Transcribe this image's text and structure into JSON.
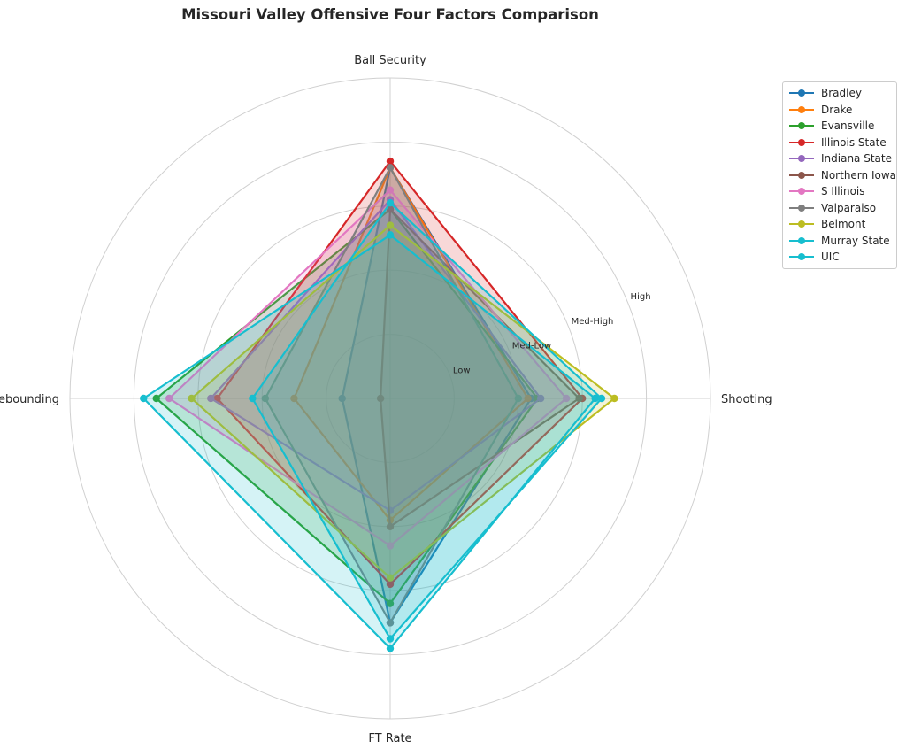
{
  "chart_data": {
    "type": "radar",
    "title": "Missouri Valley Offensive Four Factors Comparison",
    "axes": [
      "Ball Security",
      "Shooting",
      "FT Rate",
      "Off Rebounding"
    ],
    "ring_labels": [
      "Low",
      "Med-Low",
      "Med-High",
      "High"
    ],
    "r_max": 5,
    "grid": true,
    "legend_position": "upper-right-outside",
    "series": [
      {
        "name": "Bradley",
        "color": "#1f77b4",
        "values": [
          3.6,
          2.2,
          3.5,
          0.75
        ]
      },
      {
        "name": "Drake",
        "color": "#ff7f0e",
        "values": [
          3.6,
          2.15,
          1.9,
          1.5
        ]
      },
      {
        "name": "Evansville",
        "color": "#2ca02c",
        "values": [
          2.95,
          2.3,
          3.2,
          3.65
        ]
      },
      {
        "name": "Illinois State",
        "color": "#d62728",
        "values": [
          3.7,
          3.0,
          2.9,
          2.7
        ]
      },
      {
        "name": "Indiana State",
        "color": "#9467bd",
        "values": [
          3.1,
          2.35,
          1.75,
          2.8
        ]
      },
      {
        "name": "Northern Iowa",
        "color": "#8c564b",
        "values": [
          2.95,
          2.95,
          2.0,
          0.15
        ]
      },
      {
        "name": "S Illinois",
        "color": "#e377c2",
        "values": [
          3.25,
          2.75,
          2.3,
          3.45
        ]
      },
      {
        "name": "Valparaiso",
        "color": "#7f7f7f",
        "values": [
          3.6,
          2.0,
          3.5,
          1.95
        ]
      },
      {
        "name": "Belmont",
        "color": "#bcbd22",
        "values": [
          2.7,
          3.5,
          2.8,
          3.1
        ]
      },
      {
        "name": "Murray State",
        "color": "#17becf",
        "values": [
          2.55,
          3.2,
          3.9,
          3.85
        ]
      },
      {
        "name": "UIC",
        "color": "#17becf",
        "values": [
          3.05,
          3.3,
          3.75,
          2.15
        ]
      }
    ]
  }
}
